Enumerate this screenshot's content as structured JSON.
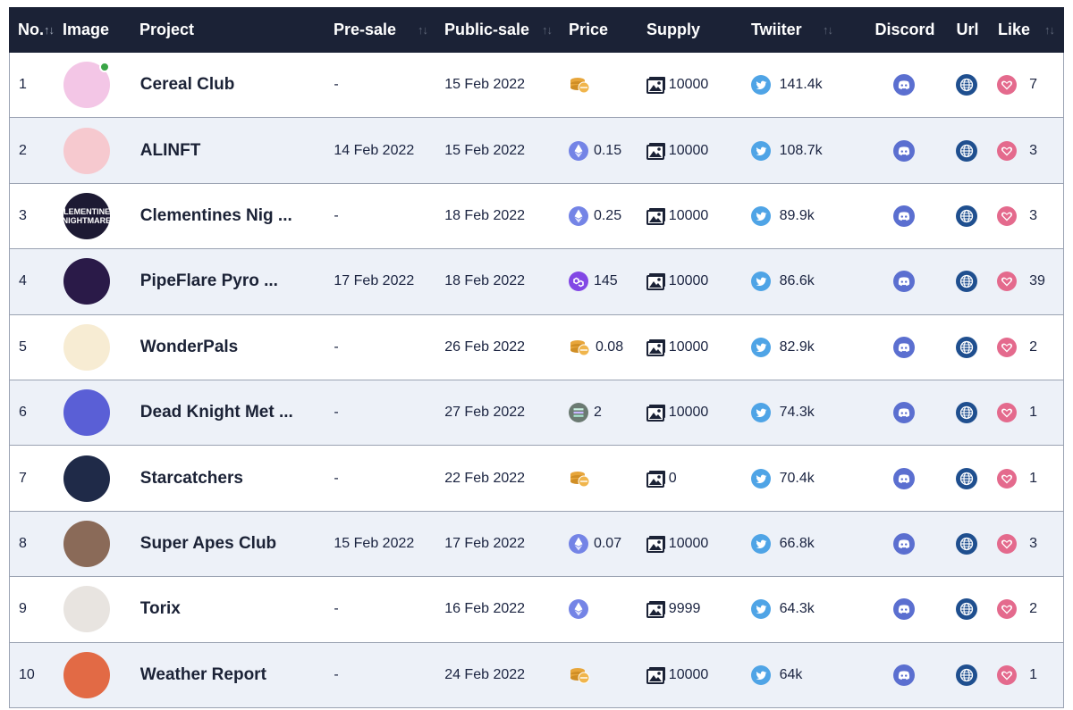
{
  "header": {
    "no": "No.",
    "image": "Image",
    "project": "Project",
    "presale": "Pre-sale",
    "publicsale": "Public-sale",
    "price": "Price",
    "supply": "Supply",
    "twitter": "Twiiter",
    "discord": "Discord",
    "url": "Url",
    "like": "Like",
    "sort_icon": "sort-arrows-icon"
  },
  "rows": [
    {
      "no": "1",
      "avatar_text": "",
      "avatar_color": "#f3c6e6",
      "online": true,
      "project": "Cereal Club",
      "presale": "-",
      "publicsale": "15 Feb 2022",
      "price_icon": "coin-stack-icon",
      "price": "",
      "supply": "10000",
      "twitter": "141.4k",
      "like": "7"
    },
    {
      "no": "2",
      "avatar_text": "",
      "avatar_color": "#f6c9cf",
      "online": false,
      "project": "ALINFT",
      "presale": "14 Feb 2022",
      "publicsale": "15 Feb 2022",
      "price_icon": "ethereum-icon",
      "price": "0.15",
      "supply": "10000",
      "twitter": "108.7k",
      "like": "3"
    },
    {
      "no": "3",
      "avatar_text": "CLEMENTINES NIGHTMARE",
      "avatar_color": "#1d1a33",
      "online": false,
      "project": "Clementines Nig ...",
      "presale": "-",
      "publicsale": "18 Feb 2022",
      "price_icon": "ethereum-icon",
      "price": "0.25",
      "supply": "10000",
      "twitter": "89.9k",
      "like": "3"
    },
    {
      "no": "4",
      "avatar_text": "",
      "avatar_color": "#2a1a48",
      "online": false,
      "project": "PipeFlare Pyro ...",
      "presale": "17 Feb 2022",
      "publicsale": "18 Feb 2022",
      "price_icon": "polygon-icon",
      "price": "145",
      "supply": "10000",
      "twitter": "86.6k",
      "like": "39"
    },
    {
      "no": "5",
      "avatar_text": "",
      "avatar_color": "#f7ecd3",
      "online": false,
      "project": "WonderPals",
      "presale": "-",
      "publicsale": "26 Feb 2022",
      "price_icon": "coin-stack-icon",
      "price": "0.08",
      "supply": "10000",
      "twitter": "82.9k",
      "like": "2"
    },
    {
      "no": "6",
      "avatar_text": "",
      "avatar_color": "#5a5fd6",
      "online": false,
      "project": "Dead Knight Met ...",
      "presale": "-",
      "publicsale": "27 Feb 2022",
      "price_icon": "solana-icon",
      "price": "2",
      "supply": "10000",
      "twitter": "74.3k",
      "like": "1"
    },
    {
      "no": "7",
      "avatar_text": "",
      "avatar_color": "#1f2a48",
      "online": false,
      "project": "Starcatchers",
      "presale": "-",
      "publicsale": "22 Feb 2022",
      "price_icon": "coin-stack-icon",
      "price": "",
      "supply": "0",
      "twitter": "70.4k",
      "like": "1"
    },
    {
      "no": "8",
      "avatar_text": "",
      "avatar_color": "#8a6a58",
      "online": false,
      "project": "Super Apes Club",
      "presale": "15 Feb 2022",
      "publicsale": "17 Feb 2022",
      "price_icon": "ethereum-icon",
      "price": "0.07",
      "supply": "10000",
      "twitter": "66.8k",
      "like": "3"
    },
    {
      "no": "9",
      "avatar_text": "",
      "avatar_color": "#e8e4e0",
      "online": false,
      "project": "Torix",
      "presale": "-",
      "publicsale": "16 Feb 2022",
      "price_icon": "ethereum-icon",
      "price": "",
      "supply": "9999",
      "twitter": "64.3k",
      "like": "2"
    },
    {
      "no": "10",
      "avatar_text": "",
      "avatar_color": "#e26a45",
      "online": false,
      "project": "Weather Report",
      "presale": "-",
      "publicsale": "24 Feb 2022",
      "price_icon": "coin-stack-icon",
      "price": "",
      "supply": "10000",
      "twitter": "64k",
      "like": "1"
    }
  ],
  "colors": {
    "header_bg": "#1b2236",
    "row_alt": "#edf1f8",
    "twitter": "#4fa4e6",
    "discord": "#5b6fd0",
    "web": "#1f4f8f",
    "like": "#e46a8d",
    "coin": "#e7a53a"
  }
}
